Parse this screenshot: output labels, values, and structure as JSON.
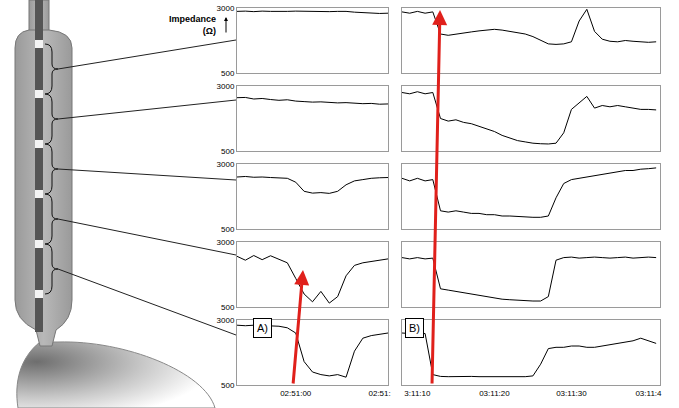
{
  "chart_data": [
    {
      "type": "line",
      "title": "A)",
      "y_label": "Impedance (Ω)",
      "color": "#000000",
      "x": [
        -7,
        -6,
        -5,
        -4,
        -3,
        -2,
        -1,
        0,
        1,
        2,
        3,
        4,
        5,
        6,
        7,
        8,
        9,
        10,
        11
      ],
      "xlim": [
        -7,
        11
      ],
      "xticks": [
        {
          "value": 0,
          "label": "02:51:00"
        },
        {
          "value": 10,
          "label": "02:51:"
        }
      ],
      "ylim": [
        500,
        3000
      ],
      "yticks": [
        500,
        3000
      ],
      "series": [
        {
          "values": [
            2870,
            2880,
            2860,
            2880,
            2870,
            2860,
            2870,
            2880,
            2870,
            2860,
            2850,
            2860,
            2870,
            2870,
            2840,
            2820,
            2800,
            2790,
            2800
          ]
        },
        {
          "values": [
            2550,
            2560,
            2500,
            2520,
            2480,
            2450,
            2470,
            2420,
            2400,
            2380,
            2390,
            2370,
            2350,
            2360,
            2340,
            2320,
            2330,
            2300,
            2310
          ]
        },
        {
          "values": [
            2500,
            2520,
            2490,
            2500,
            2480,
            2470,
            2450,
            2300,
            1950,
            1880,
            1900,
            1870,
            1950,
            2200,
            2350,
            2400,
            2450,
            2470,
            2480
          ]
        },
        {
          "values": [
            2450,
            2300,
            2480,
            2320,
            2470,
            2350,
            2200,
            1600,
            1000,
            700,
            1100,
            650,
            900,
            1700,
            2100,
            2200,
            2250,
            2300,
            2350
          ]
        },
        {
          "values": [
            2800,
            2780,
            2800,
            2790,
            2780,
            2760,
            2700,
            2500,
            1400,
            1000,
            900,
            850,
            900,
            800,
            1800,
            2300,
            2400,
            2450,
            2500
          ]
        }
      ]
    },
    {
      "type": "line",
      "title": "B)",
      "color": "#000000",
      "tick_labels": "x",
      "x": [
        8,
        9,
        10,
        11,
        12,
        13,
        14,
        15,
        16,
        17,
        18,
        19,
        20,
        21,
        22,
        23,
        24,
        25,
        26,
        27,
        28,
        29,
        30,
        31,
        32,
        33,
        34,
        35,
        36,
        37,
        38,
        39,
        40,
        41
      ],
      "xlim": [
        8,
        41.5
      ],
      "xticks": [
        {
          "value": 10,
          "label": "3:11:10"
        },
        {
          "value": 20,
          "label": "03:11:20"
        },
        {
          "value": 30,
          "label": "03:11:30"
        },
        {
          "value": 40,
          "label": "03:11:4"
        }
      ],
      "ylim": [
        500,
        3000
      ],
      "yticks": [
        500,
        3000
      ],
      "series": [
        {
          "values": [
            2850,
            2800,
            2870,
            2800,
            2850,
            2000,
            1950,
            2000,
            2050,
            2080,
            2120,
            2150,
            2180,
            2150,
            2100,
            2050,
            2000,
            1900,
            1750,
            1620,
            1600,
            1620,
            1700,
            2500,
            2950,
            2100,
            1800,
            1720,
            1700,
            1750,
            1720,
            1700,
            1680,
            1700
          ]
        },
        {
          "values": [
            2750,
            2700,
            2780,
            2700,
            2750,
            1750,
            1650,
            1700,
            1600,
            1550,
            1450,
            1350,
            1250,
            1100,
            1000,
            900,
            850,
            800,
            780,
            770,
            800,
            1200,
            2100,
            2350,
            2600,
            2150,
            2250,
            2200,
            2250,
            2200,
            2150,
            2100,
            2100,
            2080
          ]
        },
        {
          "values": [
            2450,
            2350,
            2450,
            2350,
            2400,
            1200,
            1150,
            1200,
            1150,
            1100,
            1100,
            1050,
            1050,
            1000,
            1000,
            980,
            950,
            950,
            950,
            1000,
            1700,
            2250,
            2400,
            2450,
            2500,
            2550,
            2600,
            2650,
            2700,
            2750,
            2750,
            2800,
            2820,
            2850
          ]
        },
        {
          "values": [
            2400,
            2350,
            2400,
            2350,
            2380,
            1200,
            1150,
            1100,
            1050,
            1000,
            950,
            900,
            850,
            800,
            780,
            760,
            740,
            730,
            730,
            900,
            2300,
            2400,
            2420,
            2380,
            2400,
            2420,
            2400,
            2380,
            2400,
            2420,
            2380,
            2400,
            2420,
            2400
          ]
        },
        {
          "values": [
            2500,
            2480,
            2500,
            2480,
            900,
            830,
            820,
            830,
            820,
            830,
            820,
            820,
            830,
            820,
            820,
            830,
            820,
            850,
            1300,
            1900,
            1950,
            1950,
            2000,
            2000,
            1950,
            1950,
            2000,
            2050,
            2100,
            2150,
            2200,
            2300,
            2200,
            2100
          ]
        }
      ]
    }
  ]
}
